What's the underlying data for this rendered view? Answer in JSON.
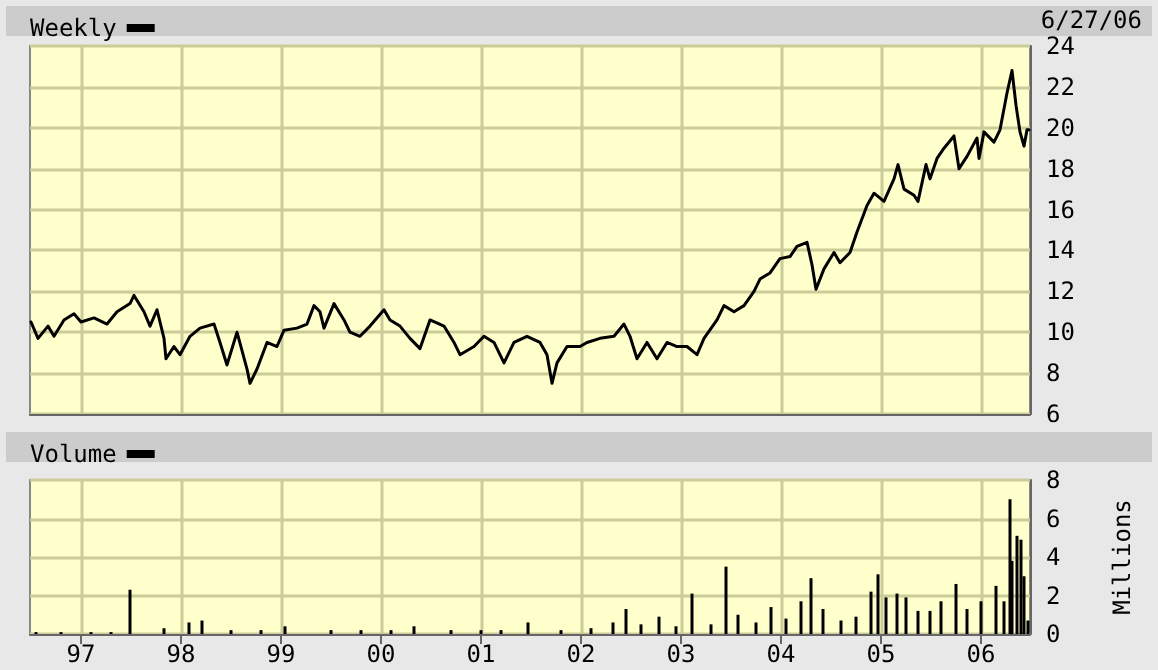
{
  "chart_data": [
    {
      "type": "line",
      "legend": "top left",
      "grid": true,
      "tick_labels": "y",
      "marker": "none",
      "line_style": "solid",
      "annotations": [
        "6/27/06"
      ],
      "xlim": [
        1996.49,
        2006.49
      ],
      "xticks": [
        1997,
        1998,
        1999,
        2000,
        2001,
        2002,
        2003,
        2004,
        2005,
        2006
      ],
      "ylim": [
        6,
        24
      ],
      "yticks": [
        6,
        8,
        10,
        12,
        14,
        16,
        18,
        20,
        22,
        24
      ],
      "x": [
        1996.5,
        1996.57,
        1996.67,
        1996.73,
        1996.83,
        1996.93,
        1997.0,
        1997.13,
        1997.26,
        1997.36,
        1997.49,
        1997.53,
        1997.63,
        1997.69,
        1997.76,
        1997.83,
        1997.85,
        1997.93,
        1997.99,
        1998.09,
        1998.19,
        1998.33,
        1998.39,
        1998.46,
        1998.56,
        1998.66,
        1998.69,
        1998.76,
        1998.86,
        1998.96,
        1999.03,
        1999.16,
        1999.26,
        1999.33,
        1999.39,
        1999.43,
        1999.53,
        1999.63,
        1999.69,
        1999.79,
        1999.89,
        2000.03,
        2000.09,
        2000.19,
        2000.29,
        2000.39,
        2000.49,
        2000.63,
        2000.73,
        2000.79,
        2000.93,
        2001.03,
        2001.13,
        2001.23,
        2001.33,
        2001.46,
        2001.59,
        2001.66,
        2001.71,
        2001.76,
        2001.86,
        2001.99,
        2002.06,
        2002.19,
        2002.33,
        2002.43,
        2002.49,
        2002.56,
        2002.66,
        2002.76,
        2002.86,
        2002.96,
        2003.06,
        2003.16,
        2003.23,
        2003.36,
        2003.43,
        2003.53,
        2003.63,
        2003.73,
        2003.79,
        2003.89,
        2003.99,
        2004.09,
        2004.16,
        2004.26,
        2004.31,
        2004.35,
        2004.43,
        2004.53,
        2004.59,
        2004.69,
        2004.76,
        2004.86,
        2004.93,
        2005.03,
        2005.13,
        2005.17,
        2005.23,
        2005.33,
        2005.37,
        2005.45,
        2005.49,
        2005.56,
        2005.63,
        2005.73,
        2005.78,
        2005.86,
        2005.96,
        2005.98,
        2006.03,
        2006.13,
        2006.19,
        2006.26,
        2006.31,
        2006.35,
        2006.39,
        2006.43,
        2006.46,
        2006.48
      ],
      "series": [
        {
          "name": "Weekly",
          "color": "#000000",
          "values": [
            10.5,
            9.7,
            10.3,
            9.8,
            10.6,
            10.9,
            10.5,
            10.7,
            10.4,
            11.0,
            11.4,
            11.8,
            11.0,
            10.3,
            11.1,
            9.7,
            8.7,
            9.3,
            8.9,
            9.8,
            10.2,
            10.4,
            9.5,
            8.4,
            10.0,
            8.2,
            7.5,
            8.2,
            9.5,
            9.3,
            10.1,
            10.2,
            10.4,
            11.3,
            11.0,
            10.2,
            11.4,
            10.6,
            10.0,
            9.8,
            10.3,
            11.1,
            10.6,
            10.3,
            9.7,
            9.2,
            10.6,
            10.3,
            9.5,
            8.9,
            9.3,
            9.8,
            9.5,
            8.5,
            9.5,
            9.8,
            9.5,
            8.9,
            7.5,
            8.5,
            9.3,
            9.3,
            9.5,
            9.7,
            9.8,
            10.4,
            9.8,
            8.7,
            9.5,
            8.7,
            9.5,
            9.3,
            9.3,
            8.9,
            9.7,
            10.6,
            11.3,
            11.0,
            11.3,
            12.0,
            12.6,
            12.9,
            13.6,
            13.7,
            14.2,
            14.4,
            13.3,
            12.1,
            13.1,
            13.9,
            13.4,
            13.9,
            14.9,
            16.2,
            16.8,
            16.4,
            17.5,
            18.2,
            17.0,
            16.7,
            16.4,
            18.2,
            17.5,
            18.5,
            19.0,
            19.6,
            18.0,
            18.6,
            19.5,
            18.5,
            19.8,
            19.3,
            19.9,
            21.7,
            22.8,
            21.1,
            19.8,
            19.1,
            19.9,
            19.9
          ]
        }
      ]
    },
    {
      "type": "bar",
      "legend": "top left",
      "grid": true,
      "ylabel": "Millions",
      "xlim": [
        1996.49,
        2006.49
      ],
      "xticks": [
        {
          "value": 1997,
          "label": "97"
        },
        {
          "value": 1998,
          "label": "98"
        },
        {
          "value": 1999,
          "label": "99"
        },
        {
          "value": 2000,
          "label": "00"
        },
        {
          "value": 2001,
          "label": "01"
        },
        {
          "value": 2002,
          "label": "02"
        },
        {
          "value": 2003,
          "label": "03"
        },
        {
          "value": 2004,
          "label": "04"
        },
        {
          "value": 2005,
          "label": "05"
        },
        {
          "value": 2006,
          "label": "06"
        }
      ],
      "ylim": [
        0,
        8
      ],
      "yticks": [
        0,
        2,
        4,
        6,
        8
      ],
      "x": [
        1996.55,
        1996.8,
        1997.1,
        1997.3,
        1997.49,
        1997.83,
        1998.08,
        1998.21,
        1998.5,
        1998.8,
        1999.04,
        1999.5,
        1999.8,
        2000.1,
        2000.33,
        2000.7,
        2001.0,
        2001.2,
        2001.47,
        2001.8,
        2002.1,
        2002.32,
        2002.45,
        2002.6,
        2002.78,
        2002.95,
        2003.11,
        2003.3,
        2003.45,
        2003.57,
        2003.75,
        2003.9,
        2004.05,
        2004.2,
        2004.3,
        2004.42,
        2004.6,
        2004.75,
        2004.9,
        2004.97,
        2005.05,
        2005.16,
        2005.25,
        2005.37,
        2005.49,
        2005.6,
        2005.75,
        2005.86,
        2006.0,
        2006.15,
        2006.23,
        2006.29,
        2006.31,
        2006.36,
        2006.4,
        2006.43,
        2006.47
      ],
      "series": [
        {
          "name": "Volume",
          "color": "#000000",
          "values": [
            0.1,
            0.1,
            0.1,
            0.1,
            2.3,
            0.3,
            0.6,
            0.7,
            0.2,
            0.2,
            0.4,
            0.2,
            0.2,
            0.2,
            0.4,
            0.2,
            0.2,
            0.2,
            0.6,
            0.2,
            0.3,
            0.6,
            1.3,
            0.5,
            0.9,
            0.4,
            2.1,
            0.5,
            3.5,
            1.0,
            0.6,
            1.4,
            0.8,
            1.7,
            2.9,
            1.3,
            0.7,
            0.9,
            2.2,
            3.1,
            1.9,
            2.1,
            1.9,
            1.2,
            1.2,
            1.7,
            2.6,
            1.3,
            1.7,
            2.5,
            1.7,
            7.0,
            3.8,
            5.1,
            4.9,
            3.0,
            0.7
          ]
        }
      ]
    }
  ]
}
